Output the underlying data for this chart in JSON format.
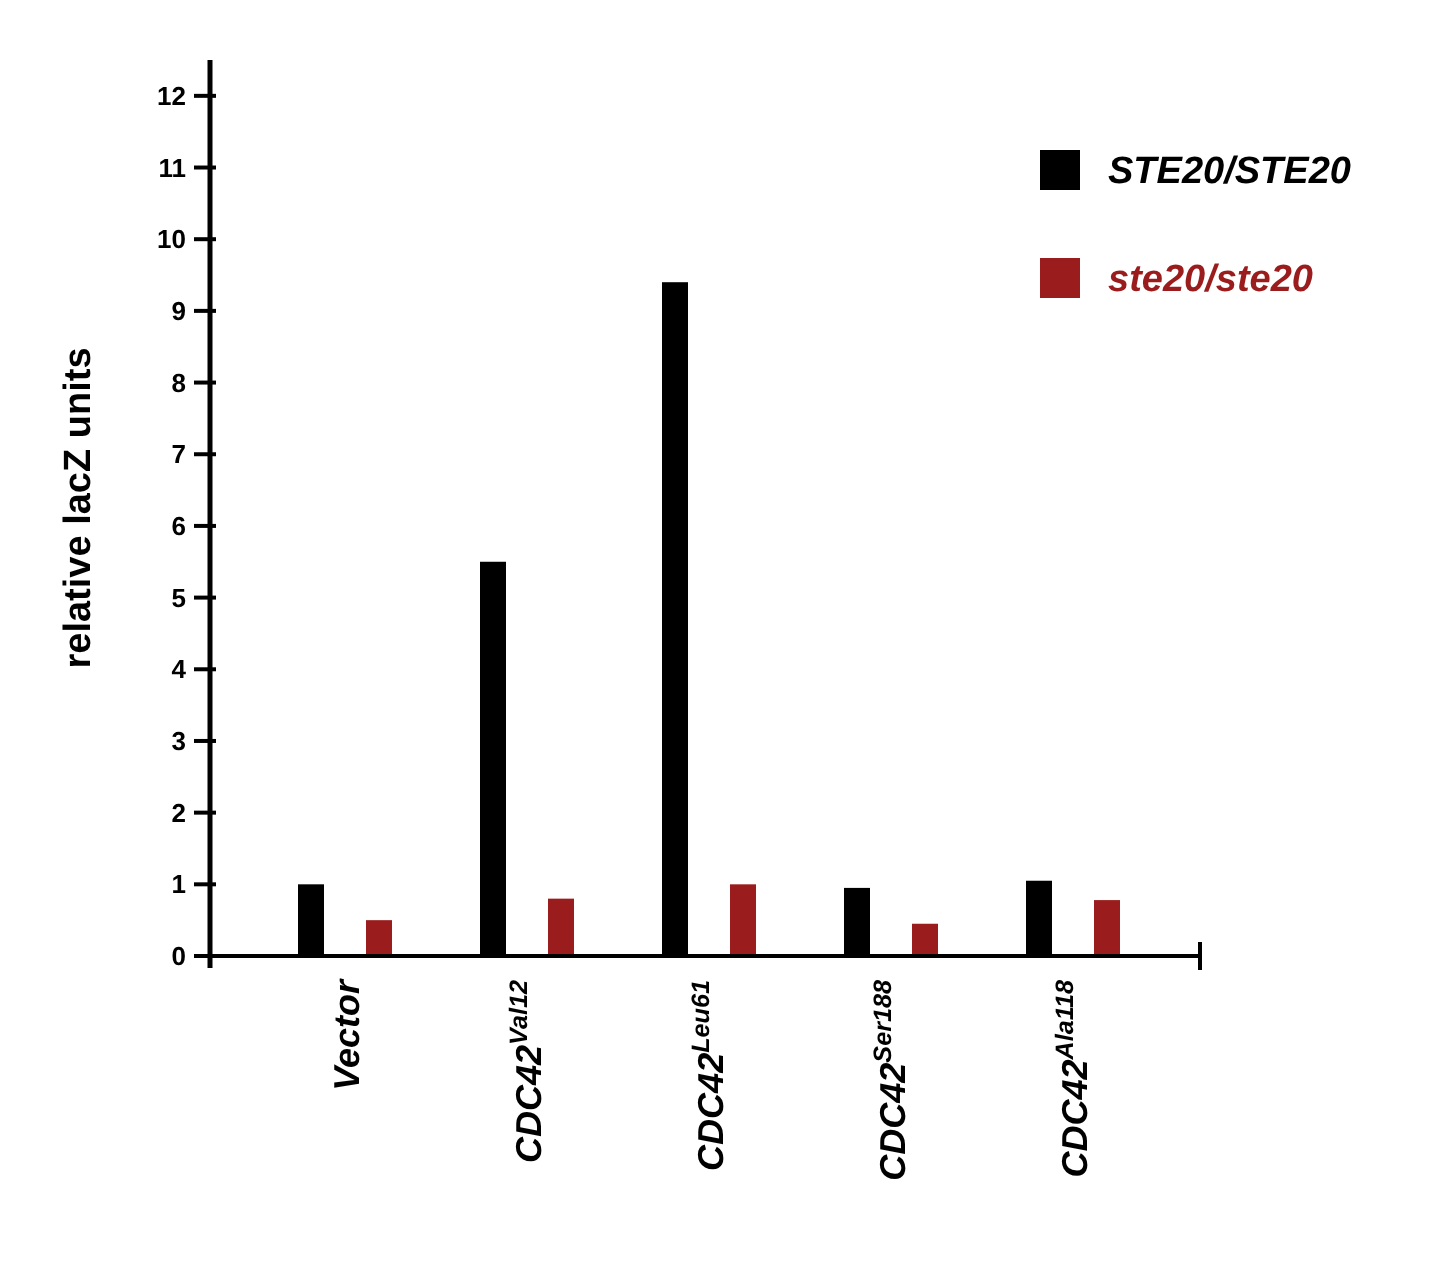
{
  "chart_data": {
    "type": "bar",
    "ylabel": "relative lacZ units",
    "categories": [
      "Vector",
      "CDC42$^{Val12}$",
      "CDC42$^{Leu61}$",
      "CDC42$^{Ser188}$",
      "CDC42$^{Ala118}$"
    ],
    "series": [
      {
        "name": "STE20/STE20",
        "color": "#000000",
        "values": [
          1.0,
          5.5,
          9.4,
          0.95,
          1.05
        ]
      },
      {
        "name": "ste20/ste20",
        "color": "#9b1c1c",
        "values": [
          0.5,
          0.8,
          1.0,
          0.45,
          0.78
        ]
      }
    ],
    "ylim": [
      0,
      12.5
    ],
    "yticks": [
      0,
      1,
      2,
      3,
      4,
      5,
      6,
      7,
      8,
      9,
      10,
      11,
      12
    ],
    "legend": "top right"
  }
}
